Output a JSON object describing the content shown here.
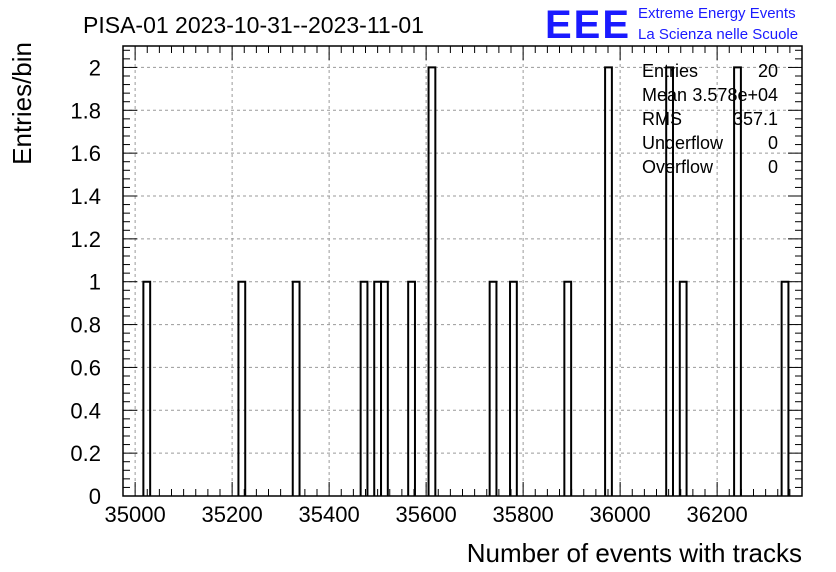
{
  "chart_data": {
    "type": "bar",
    "title": "PISA-01 2023-10-31--2023-11-01",
    "xlabel": "Number of events with tracks",
    "ylabel": "Entries/bin",
    "xlim": [
      34975,
      36375
    ],
    "ylim": [
      0,
      2.1
    ],
    "bin_width": 14,
    "x_ticks": [
      35000,
      35200,
      35400,
      35600,
      35800,
      36000,
      36200
    ],
    "y_ticks": [
      0,
      0.2,
      0.4,
      0.6,
      0.8,
      1,
      1.2,
      1.4,
      1.6,
      1.8,
      2
    ],
    "grid": true,
    "bins": [
      {
        "x": 35017,
        "count": 1
      },
      {
        "x": 35213,
        "count": 1
      },
      {
        "x": 35325,
        "count": 1
      },
      {
        "x": 35465,
        "count": 1
      },
      {
        "x": 35493,
        "count": 1
      },
      {
        "x": 35507,
        "count": 1
      },
      {
        "x": 35563,
        "count": 1
      },
      {
        "x": 35605,
        "count": 2
      },
      {
        "x": 35731,
        "count": 1
      },
      {
        "x": 35773,
        "count": 1
      },
      {
        "x": 35885,
        "count": 1
      },
      {
        "x": 35969,
        "count": 2
      },
      {
        "x": 36095,
        "count": 2
      },
      {
        "x": 36123,
        "count": 1
      },
      {
        "x": 36235,
        "count": 2
      },
      {
        "x": 36333,
        "count": 1
      }
    ],
    "stats": [
      {
        "label": "Entries",
        "value": "20"
      },
      {
        "label": "Mean",
        "value": "3.578e+04"
      },
      {
        "label": "RMS",
        "value": "357.1"
      },
      {
        "label": "Underflow",
        "value": "0"
      },
      {
        "label": "Overflow",
        "value": "0"
      }
    ]
  },
  "logo": {
    "mark": "EEE",
    "line1": "Extreme Energy Events",
    "line2": "La Scienza nelle Scuole",
    "color": "#1a1aff"
  }
}
